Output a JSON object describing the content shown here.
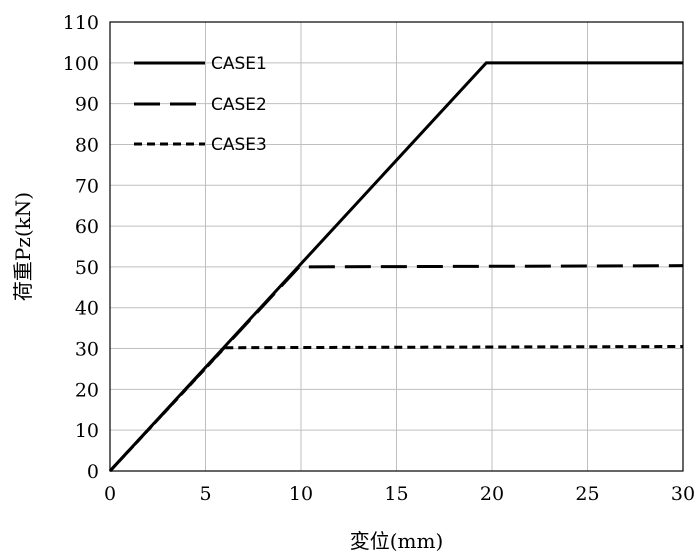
{
  "chart_data": {
    "type": "line",
    "title": "",
    "xlabel": "変位(mm)",
    "ylabel": "荷重Pz(kN)",
    "xlim": [
      0,
      30
    ],
    "ylim": [
      0,
      110
    ],
    "x_ticks": [
      0,
      5,
      10,
      15,
      20,
      25,
      30
    ],
    "y_ticks": [
      0,
      10,
      20,
      30,
      40,
      50,
      60,
      70,
      80,
      90,
      100,
      110
    ],
    "grid": true,
    "legend_position": "top-left",
    "series": [
      {
        "name": "CASE1",
        "style": "solid",
        "points": [
          [
            0,
            0
          ],
          [
            19.7,
            100
          ],
          [
            30,
            100
          ]
        ]
      },
      {
        "name": "CASE2",
        "style": "long-dash",
        "points": [
          [
            0,
            0
          ],
          [
            9.9,
            50
          ],
          [
            30,
            50.3
          ]
        ]
      },
      {
        "name": "CASE3",
        "style": "short-dash",
        "points": [
          [
            0,
            0
          ],
          [
            6,
            30.2
          ],
          [
            30,
            30.5
          ]
        ]
      }
    ],
    "colors": {
      "line": "#000000",
      "grid": "#bfbfbf",
      "axis": "#000000"
    }
  }
}
